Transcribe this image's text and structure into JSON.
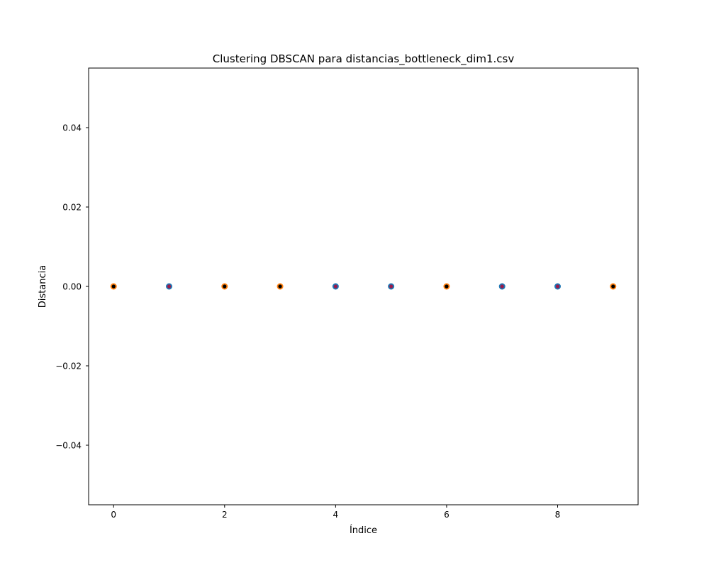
{
  "chart_data": {
    "type": "scatter",
    "title": "Clustering DBSCAN para distancias_bottleneck_dim1.csv",
    "xlabel": "Índice",
    "ylabel": "Distancia",
    "xlim": [
      -0.45,
      9.45
    ],
    "ylim": [
      -0.055,
      0.055
    ],
    "xticks": [
      0,
      2,
      4,
      6,
      8
    ],
    "xtick_labels": [
      "0",
      "2",
      "4",
      "6",
      "8"
    ],
    "yticks": [
      -0.04,
      -0.02,
      0.0,
      0.02,
      0.04
    ],
    "ytick_labels": [
      "−0.04",
      "−0.02",
      "0.00",
      "0.02",
      "0.04"
    ],
    "grid": false,
    "legend": "none",
    "points": [
      {
        "x": 0,
        "y": 0.0,
        "outer_color": "#ff7f0e",
        "inner_color": "#000000"
      },
      {
        "x": 1,
        "y": 0.0,
        "outer_color": "#1f77b4",
        "inner_color": "#9b1b4b"
      },
      {
        "x": 2,
        "y": 0.0,
        "outer_color": "#ff7f0e",
        "inner_color": "#000000"
      },
      {
        "x": 3,
        "y": 0.0,
        "outer_color": "#ff7f0e",
        "inner_color": "#000000"
      },
      {
        "x": 4,
        "y": 0.0,
        "outer_color": "#1f77b4",
        "inner_color": "#9b1b4b"
      },
      {
        "x": 5,
        "y": 0.0,
        "outer_color": "#1f77b4",
        "inner_color": "#9b1b4b"
      },
      {
        "x": 6,
        "y": 0.0,
        "outer_color": "#ff7f0e",
        "inner_color": "#000000"
      },
      {
        "x": 7,
        "y": 0.0,
        "outer_color": "#1f77b4",
        "inner_color": "#9b1b4b"
      },
      {
        "x": 8,
        "y": 0.0,
        "outer_color": "#1f77b4",
        "inner_color": "#9b1b4b"
      },
      {
        "x": 9,
        "y": 0.0,
        "outer_color": "#ff7f0e",
        "inner_color": "#000000"
      }
    ]
  }
}
